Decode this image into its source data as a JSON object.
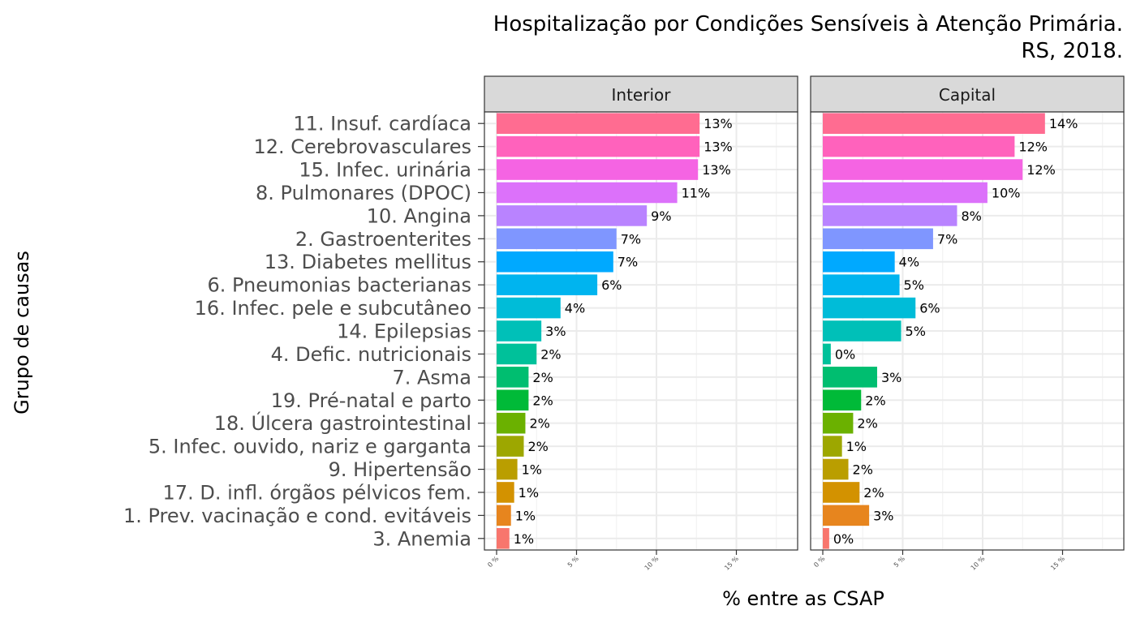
{
  "chart_data": {
    "type": "bar",
    "title_lines": [
      "Hospitalização por Condições Sensíveis à Atenção Primária.",
      "RS, 2018."
    ],
    "xlabel": "% entre as CSAP",
    "ylabel": "Grupo de causas",
    "xlim": [
      0,
      18.5
    ],
    "x_ticks": [
      0,
      5,
      10,
      15
    ],
    "x_tick_labels": [
      "0 %",
      "5 %",
      "10 %",
      "15 %"
    ],
    "categories": [
      "11. Insuf. cardíaca",
      "12. Cerebrovasculares",
      "15. Infec. urinária",
      "8. Pulmonares (DPOC)",
      "10. Angina",
      "2. Gastroenterites",
      "13. Diabetes mellitus",
      "6. Pneumonias bacterianas",
      "16. Infec. pele e subcutâneo",
      "14. Epilepsias",
      "4. Defic. nutricionais",
      "7. Asma",
      "19. Pré-natal e parto",
      "18. Úlcera gastrointestinal",
      "5. Infec. ouvido, nariz e garganta",
      "9. Hipertensão",
      "17. D. infl. órgãos pélvicos fem.",
      "1. Prev. vacinação e cond. evitáveis",
      "3. Anemia"
    ],
    "colors": [
      "#FF6C91",
      "#FF62BC",
      "#F564E3",
      "#DC71FA",
      "#B983FF",
      "#7F96FF",
      "#00A9FF",
      "#00B4EF",
      "#00BCD8",
      "#00C0B8",
      "#00C19A",
      "#00BE70",
      "#00BA38",
      "#6BB100",
      "#9DA700",
      "#BA9E00",
      "#D39200",
      "#E7851E",
      "#F8766D"
    ],
    "panels": [
      {
        "name": "Interior",
        "values": [
          12.7,
          12.7,
          12.6,
          11.3,
          9.4,
          7.5,
          7.3,
          6.3,
          4.0,
          2.8,
          2.5,
          2.0,
          2.0,
          1.8,
          1.7,
          1.3,
          1.1,
          0.9,
          0.8
        ],
        "labels": [
          "13%",
          "13%",
          "13%",
          "11%",
          "9%",
          "7%",
          "7%",
          "6%",
          "4%",
          "3%",
          "2%",
          "2%",
          "2%",
          "2%",
          "2%",
          "1%",
          "1%",
          "1%",
          "1%"
        ]
      },
      {
        "name": "Capital",
        "values": [
          13.9,
          12.0,
          12.5,
          10.3,
          8.4,
          6.9,
          4.5,
          4.8,
          5.8,
          4.9,
          0.5,
          3.4,
          2.4,
          1.9,
          1.2,
          1.6,
          2.3,
          2.9,
          0.4
        ],
        "labels": [
          "14%",
          "12%",
          "12%",
          "10%",
          "8%",
          "7%",
          "4%",
          "5%",
          "6%",
          "5%",
          "0%",
          "3%",
          "2%",
          "2%",
          "1%",
          "2%",
          "2%",
          "3%",
          "0%"
        ]
      }
    ]
  }
}
